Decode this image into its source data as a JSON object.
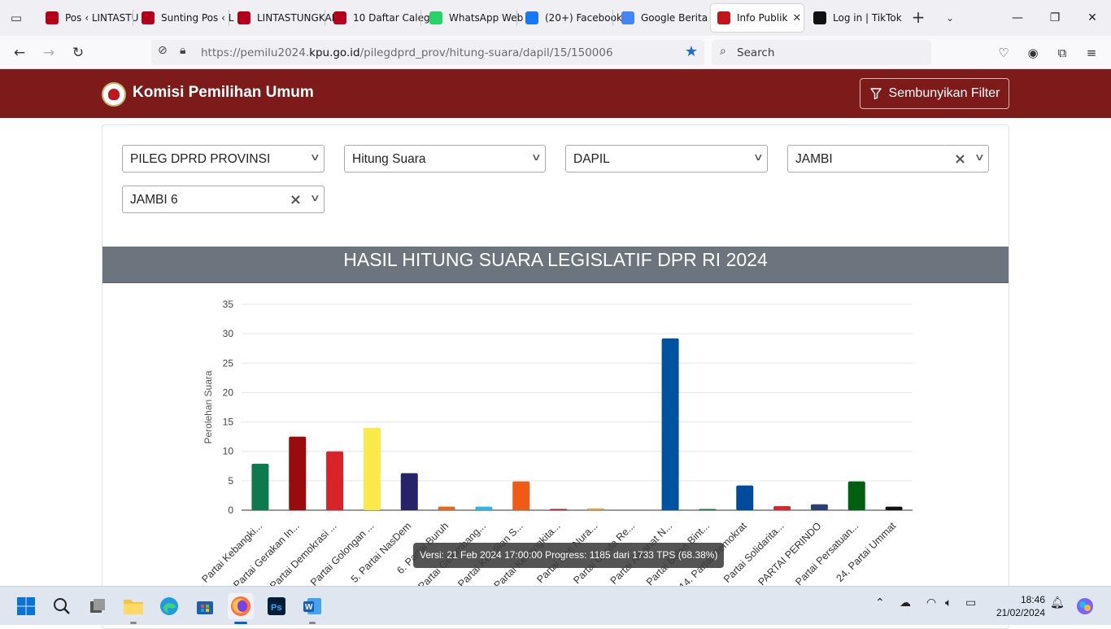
{
  "browser": {
    "tabs": [
      {
        "label": "Pos ‹ LINTASTU",
        "icon": "lintas-favicon-icon",
        "color": "#b3001b",
        "active": false
      },
      {
        "label": "Sunting Pos ‹ L",
        "icon": "lintas-favicon-icon",
        "color": "#b3001b",
        "active": false
      },
      {
        "label": "LINTASTUNGKAL",
        "icon": "lintas-favicon-icon",
        "color": "#b3001b",
        "active": false
      },
      {
        "label": "10 Daftar Caleg",
        "icon": "lintas-favicon-icon",
        "color": "#b3001b",
        "active": false
      },
      {
        "label": "WhatsApp Web",
        "icon": "whatsapp-icon",
        "color": "#25d366",
        "active": false
      },
      {
        "label": "(20+) Facebook",
        "icon": "facebook-icon",
        "color": "#1877f2",
        "active": false
      },
      {
        "label": "Google Berita",
        "icon": "google-news-icon",
        "color": "#4285f4",
        "active": false
      },
      {
        "label": "Info Publik",
        "icon": "kpu-favicon-icon",
        "color": "#c0161c",
        "active": true
      },
      {
        "label": "Log in | TikTok",
        "icon": "tiktok-icon",
        "color": "#111111",
        "active": false
      }
    ],
    "url_prefix": "https://pemilu2024.",
    "url_domain": "kpu.go.id",
    "url_path": "/pilegdprd_prov/hitung-suara/dapil/15/150006",
    "search_placeholder": "Search"
  },
  "header": {
    "site_title": "Komisi Pemilihan Umum",
    "filter_button": "Sembunyikan Filter"
  },
  "filters": {
    "election_type": "PILEG DPRD PROVINSI",
    "count_type": "Hitung Suara",
    "level": "DAPIL",
    "province": "JAMBI",
    "dapil": "JAMBI 6"
  },
  "chart_header": "HASIL HITUNG SUARA LEGISLATIF DPR RI 2024",
  "tooltip": "Versi: 21 Feb 2024 17:00:00 Progress: 1185 dari 1733 TPS (68.38%)",
  "chart_data": {
    "type": "bar",
    "ylabel": "Perolehan Suara",
    "ylim": [
      0,
      35
    ],
    "yticks": [
      0,
      5,
      10,
      15,
      20,
      25,
      30,
      35
    ],
    "grid": true,
    "categories": [
      "Partai Kebangki...",
      "Partai Gerakan In...",
      "Partai Demokrasi ...",
      "Partai Golongan ...",
      "5. Partai NasDem",
      "6. Partai Buruh",
      "Partai Gelombang...",
      "Partai Keadilan S...",
      "Partai Kebangkita...",
      "Partai Hati Nura...",
      "Partai Garda Re...",
      "Partai Amanat N...",
      "Partai Bulan Bint...",
      "14. Partai Demokrat",
      "Partai Solidarita...",
      "PARTAI PERINDO",
      "Partai Persatuan...",
      "24. Partai Ummat"
    ],
    "values": [
      7.9,
      12.5,
      10.0,
      14.0,
      6.3,
      0.6,
      0.6,
      4.9,
      0.2,
      0.3,
      0.0,
      29.2,
      0.2,
      4.2,
      0.7,
      1.0,
      4.9,
      0.6
    ],
    "colors": [
      "#0c7a4c",
      "#9a0b0b",
      "#d8232a",
      "#f9ea4a",
      "#27236b",
      "#e8661b",
      "#2bb8e8",
      "#ef5a14",
      "#c9151e",
      "#e3a13c",
      "#f08a1d",
      "#0252a2",
      "#117a3c",
      "#004b9c",
      "#d9262c",
      "#2a3f7a",
      "#016010",
      "#111111"
    ]
  },
  "taskbar": {
    "time": "18:46",
    "date": "21/02/2024"
  }
}
